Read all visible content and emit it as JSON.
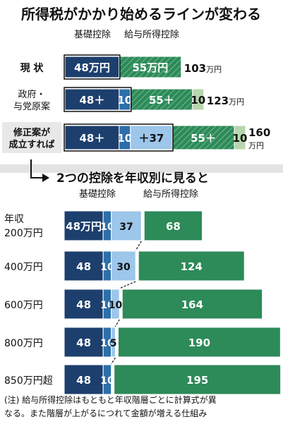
{
  "title": "所得税がかかり始めるラインが変わる",
  "subtitle": "2つの控除を年収別に見ると",
  "legend": {
    "basic_deduction": "基礎控除",
    "salary_deduction": "給与所得控除"
  },
  "note": [
    "(注) 給与所得控除はもともと年収階層ごとに計算式が異",
    "なる。また階層が上がるにつれて金額が増える仕組み"
  ],
  "colors": {
    "basic": "#1d3f6d",
    "basic_add": "#2c6fab",
    "basic_special": "#9cc6ea",
    "salary": "#2d8a59",
    "salary_add": "#b7d6ad",
    "salary_hatch_line": "#5ea87d",
    "label_box": "#e8e8e8",
    "divider_band": "#d9d9d9"
  },
  "chart_data": [
    {
      "type": "bar",
      "title": "所得税がかかり始めるラインが変わる",
      "orientation": "horizontal",
      "stacked": true,
      "unit": "万円",
      "categories": [
        "現 状",
        "政府・与党原案",
        "修正案が成立すれば"
      ],
      "totals": [
        "103万円",
        "123万円",
        "160万円"
      ],
      "series": [
        {
          "name": "基礎控除",
          "segments": [
            {
              "value": 48,
              "label": "48万円",
              "kind": "basic"
            },
            {
              "value": 48,
              "label": "48＋",
              "kind": "basic"
            },
            {
              "value": 48,
              "label": "48＋",
              "kind": "basic"
            }
          ]
        },
        {
          "name": "基礎控除",
          "segments": [
            {
              "value": 0,
              "label": "",
              "kind": "basic_add"
            },
            {
              "value": 10,
              "label": "10",
              "kind": "basic_add"
            },
            {
              "value": 10,
              "label": "10",
              "kind": "basic_add"
            }
          ]
        },
        {
          "name": "基礎控除",
          "segments": [
            {
              "value": 0,
              "label": "",
              "kind": "basic_special"
            },
            {
              "value": 0,
              "label": "",
              "kind": "basic_special"
            },
            {
              "value": 37,
              "label": "＋37",
              "kind": "basic_special"
            }
          ]
        },
        {
          "name": "給与所得控除",
          "segments": [
            {
              "value": 55,
              "label": "55万円",
              "kind": "salary_hatch"
            },
            {
              "value": 55,
              "label": "55＋",
              "kind": "salary_hatch"
            },
            {
              "value": 55,
              "label": "55＋",
              "kind": "salary_hatch"
            }
          ]
        },
        {
          "name": "給与所得控除",
          "segments": [
            {
              "value": 0,
              "label": "",
              "kind": "salary_add"
            },
            {
              "value": 10,
              "label": "10",
              "kind": "salary_add"
            },
            {
              "value": 10,
              "label": "10",
              "kind": "salary_add"
            }
          ]
        }
      ]
    },
    {
      "type": "bar",
      "title": "2つの控除を年収別に見ると",
      "orientation": "horizontal",
      "stacked": true,
      "unit": "万円",
      "categories": [
        [
          "年収",
          "200万円"
        ],
        [
          "400万円"
        ],
        [
          "600万円"
        ],
        [
          "800万円"
        ],
        [
          "850万円超"
        ]
      ],
      "series": [
        {
          "name": "基礎控除",
          "kind": "basic",
          "values": [
            48,
            48,
            48,
            48,
            48
          ],
          "labels": [
            "48万円",
            "48",
            "48",
            "48",
            "48"
          ]
        },
        {
          "name": "基礎控除",
          "kind": "basic_add",
          "values": [
            10,
            10,
            10,
            10,
            10
          ],
          "labels": [
            "10",
            "10",
            "10",
            "10",
            "10"
          ]
        },
        {
          "name": "基礎控除",
          "kind": "basic_special",
          "values": [
            37,
            30,
            10,
            5,
            0
          ],
          "labels": [
            "37",
            "30",
            "10",
            "5",
            ""
          ]
        },
        {
          "name": "給与所得控除",
          "kind": "salary",
          "values": [
            68,
            124,
            164,
            190,
            195
          ],
          "labels": [
            "68",
            "124",
            "164",
            "190",
            "195"
          ]
        }
      ]
    }
  ]
}
